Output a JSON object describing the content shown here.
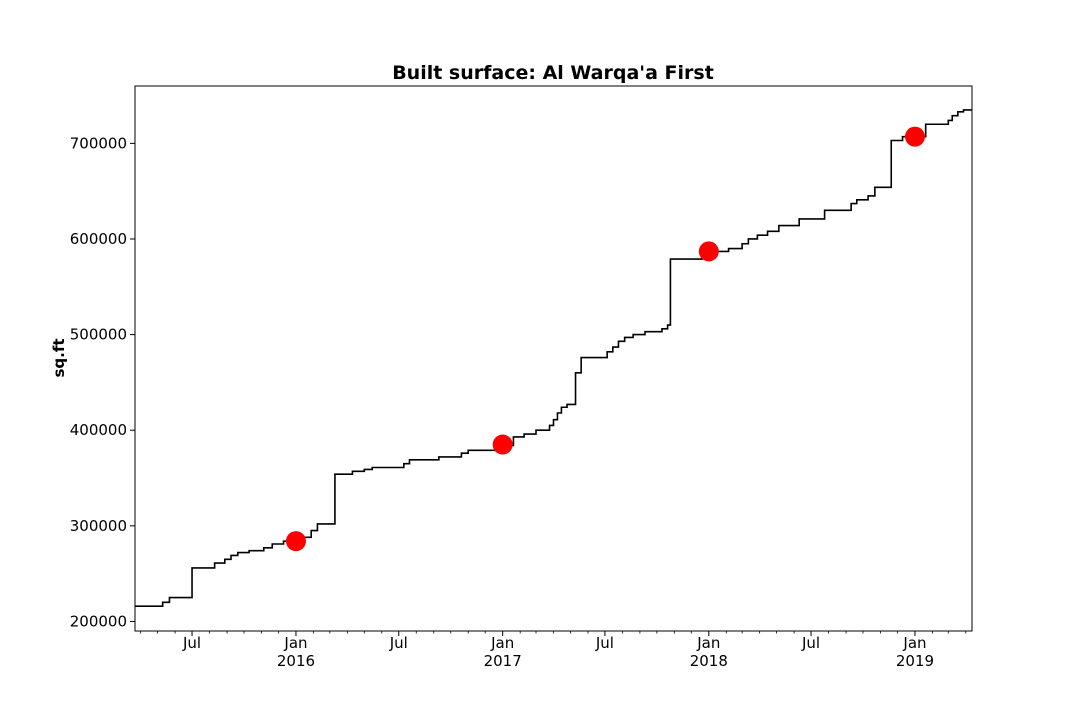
{
  "chart_data": {
    "type": "line",
    "title": "Built surface: Al Warqa'a First",
    "xlabel": "",
    "ylabel": "sq.ft",
    "xlim": [
      "2015-03-22",
      "2019-04-12"
    ],
    "ylim": [
      190000,
      760000
    ],
    "y_ticks": [
      {
        "value": 200000,
        "label": "200000"
      },
      {
        "value": 300000,
        "label": "300000"
      },
      {
        "value": 400000,
        "label": "400000"
      },
      {
        "value": 500000,
        "label": "500000"
      },
      {
        "value": 600000,
        "label": "600000"
      },
      {
        "value": 700000,
        "label": "700000"
      }
    ],
    "x_major_ticks": [
      {
        "date": "2015-07-01",
        "label": "Jul",
        "sublabel": ""
      },
      {
        "date": "2016-01-01",
        "label": "Jan",
        "sublabel": "2016"
      },
      {
        "date": "2016-07-01",
        "label": "Jul",
        "sublabel": ""
      },
      {
        "date": "2017-01-01",
        "label": "Jan",
        "sublabel": "2017"
      },
      {
        "date": "2017-07-01",
        "label": "Jul",
        "sublabel": ""
      },
      {
        "date": "2018-01-01",
        "label": "Jan",
        "sublabel": "2018"
      },
      {
        "date": "2018-07-01",
        "label": "Jul",
        "sublabel": ""
      },
      {
        "date": "2019-01-01",
        "label": "Jan",
        "sublabel": "2019"
      }
    ],
    "x_minor_ticks": [
      "2015-04-01",
      "2015-05-01",
      "2015-06-01",
      "2015-08-01",
      "2015-09-01",
      "2015-10-01",
      "2015-11-01",
      "2015-12-01",
      "2016-02-01",
      "2016-03-01",
      "2016-04-01",
      "2016-05-01",
      "2016-06-01",
      "2016-08-01",
      "2016-09-01",
      "2016-10-01",
      "2016-11-01",
      "2016-12-01",
      "2017-02-01",
      "2017-03-01",
      "2017-04-01",
      "2017-05-01",
      "2017-06-01",
      "2017-08-01",
      "2017-09-01",
      "2017-10-01",
      "2017-11-01",
      "2017-12-01",
      "2018-02-01",
      "2018-03-01",
      "2018-04-01",
      "2018-05-01",
      "2018-06-01",
      "2018-08-01",
      "2018-09-01",
      "2018-10-01",
      "2018-11-01",
      "2018-12-01",
      "2019-02-01",
      "2019-03-01",
      "2019-04-01"
    ],
    "grid": false,
    "series": [
      {
        "type": "step",
        "color": "#000000",
        "points": [
          [
            "2015-03-22",
            216000
          ],
          [
            "2015-05-10",
            220000
          ],
          [
            "2015-05-22",
            225000
          ],
          [
            "2015-07-01",
            256000
          ],
          [
            "2015-08-10",
            261000
          ],
          [
            "2015-08-28",
            265000
          ],
          [
            "2015-09-08",
            269000
          ],
          [
            "2015-09-20",
            272000
          ],
          [
            "2015-10-10",
            274000
          ],
          [
            "2015-11-05",
            277000
          ],
          [
            "2015-11-20",
            281000
          ],
          [
            "2015-12-10",
            284000
          ],
          [
            "2016-01-10",
            288000
          ],
          [
            "2016-01-28",
            295000
          ],
          [
            "2016-02-08",
            302000
          ],
          [
            "2016-03-10",
            354000
          ],
          [
            "2016-04-10",
            357000
          ],
          [
            "2016-05-01",
            359000
          ],
          [
            "2016-05-15",
            361000
          ],
          [
            "2016-07-10",
            365000
          ],
          [
            "2016-07-20",
            369000
          ],
          [
            "2016-09-10",
            372000
          ],
          [
            "2016-10-20",
            376000
          ],
          [
            "2016-11-01",
            379000
          ],
          [
            "2017-01-05",
            384000
          ],
          [
            "2017-01-20",
            393000
          ],
          [
            "2017-02-08",
            396000
          ],
          [
            "2017-03-01",
            400000
          ],
          [
            "2017-03-25",
            405000
          ],
          [
            "2017-04-01",
            411000
          ],
          [
            "2017-04-08",
            418000
          ],
          [
            "2017-04-15",
            424000
          ],
          [
            "2017-04-25",
            427000
          ],
          [
            "2017-05-10",
            460000
          ],
          [
            "2017-05-20",
            476000
          ],
          [
            "2017-07-05",
            482000
          ],
          [
            "2017-07-15",
            487000
          ],
          [
            "2017-07-25",
            493000
          ],
          [
            "2017-08-05",
            497000
          ],
          [
            "2017-08-20",
            500000
          ],
          [
            "2017-09-10",
            503000
          ],
          [
            "2017-10-10",
            506000
          ],
          [
            "2017-10-20",
            510000
          ],
          [
            "2017-10-25",
            579000
          ],
          [
            "2017-12-20",
            583000
          ],
          [
            "2018-01-15",
            587000
          ],
          [
            "2018-02-05",
            590000
          ],
          [
            "2018-03-01",
            595000
          ],
          [
            "2018-03-12",
            600000
          ],
          [
            "2018-03-28",
            604000
          ],
          [
            "2018-04-15",
            608000
          ],
          [
            "2018-05-05",
            614000
          ],
          [
            "2018-06-10",
            621000
          ],
          [
            "2018-07-25",
            630000
          ],
          [
            "2018-09-10",
            637000
          ],
          [
            "2018-09-20",
            641000
          ],
          [
            "2018-10-10",
            645000
          ],
          [
            "2018-10-22",
            654000
          ],
          [
            "2018-11-20",
            703000
          ],
          [
            "2018-12-10",
            707000
          ],
          [
            "2019-01-20",
            720000
          ],
          [
            "2019-03-01",
            724000
          ],
          [
            "2019-03-08",
            729000
          ],
          [
            "2019-03-18",
            733000
          ],
          [
            "2019-03-28",
            735000
          ],
          [
            "2019-04-12",
            735000
          ]
        ]
      },
      {
        "type": "scatter",
        "color": "#ff0000",
        "points": [
          [
            "2016-01-01",
            284000
          ],
          [
            "2017-01-01",
            385000
          ],
          [
            "2018-01-01",
            587000
          ],
          [
            "2019-01-01",
            707000
          ]
        ]
      }
    ]
  }
}
